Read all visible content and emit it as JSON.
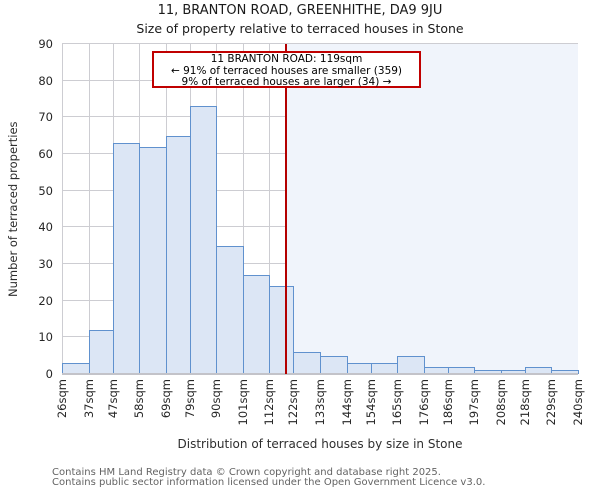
{
  "chart_data": {
    "type": "bar",
    "title": "11, BRANTON ROAD, GREENHITHE, DA9 9JU",
    "subtitle": "Size of property relative to terraced houses in Stone",
    "xlabel": "Distribution of terraced houses by size in Stone",
    "ylabel": "Number of terraced properties",
    "bin_edges_sqm": [
      26,
      37,
      47,
      58,
      69,
      79,
      90,
      101,
      112,
      122,
      133,
      144,
      154,
      165,
      176,
      186,
      197,
      208,
      218,
      229,
      240
    ],
    "tick_labels": [
      "26sqm",
      "37sqm",
      "47sqm",
      "58sqm",
      "69sqm",
      "79sqm",
      "90sqm",
      "101sqm",
      "112sqm",
      "122sqm",
      "133sqm",
      "144sqm",
      "154sqm",
      "165sqm",
      "176sqm",
      "186sqm",
      "197sqm",
      "208sqm",
      "218sqm",
      "229sqm",
      "240sqm"
    ],
    "values": [
      3,
      12,
      63,
      62,
      65,
      73,
      35,
      27,
      24,
      6,
      5,
      3,
      3,
      5,
      2,
      2,
      1,
      1,
      2,
      1
    ],
    "ylim": [
      0,
      90
    ],
    "yticks": [
      0,
      10,
      20,
      30,
      40,
      50,
      60,
      70,
      80,
      90
    ],
    "grid": true,
    "legend": null,
    "marker": {
      "x_sqm": 119,
      "line_color": "#b40000",
      "shade_right_color": "#f0f4fb"
    },
    "annotation": {
      "line1": "11 BRANTON ROAD: 119sqm",
      "line2": "← 91% of terraced houses are smaller (359)",
      "line3": "9% of terraced houses are larger (34) →",
      "border_color": "#c00000"
    },
    "colors": {
      "bar_fill": "#dce6f5",
      "bar_border": "#6091ce",
      "grid": "#cdcdd2"
    }
  },
  "footer": {
    "line1": "Contains HM Land Registry data © Crown copyright and database right 2025.",
    "line2": "Contains public sector information licensed under the Open Government Licence v3.0."
  }
}
